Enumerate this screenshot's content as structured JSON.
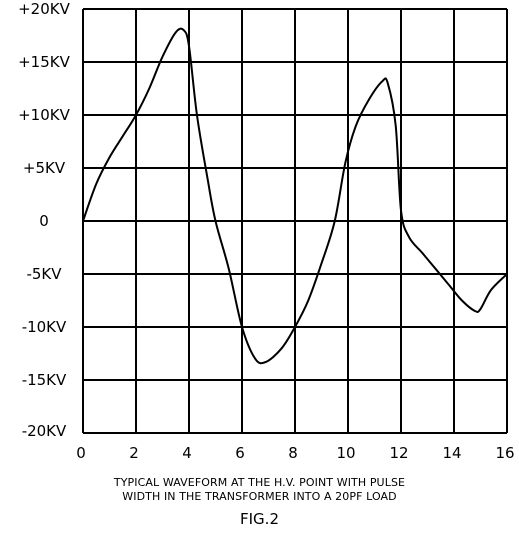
{
  "chart_data": {
    "type": "line",
    "xlim": [
      0,
      16
    ],
    "ylim": [
      -20,
      20
    ],
    "x_ticks": [
      0,
      2,
      4,
      6,
      8,
      10,
      12,
      14,
      16
    ],
    "x_tick_labels": [
      "0",
      "2",
      "4",
      "6",
      "8",
      "10",
      "12",
      "14",
      "16"
    ],
    "y_ticks": [
      20,
      15,
      10,
      5,
      0,
      -5,
      -10,
      -15,
      -20
    ],
    "y_tick_labels": [
      "+20KV",
      "+15KV",
      "+10KV",
      "+5KV",
      "0",
      "-5KV",
      "-10KV",
      "-15KV",
      "-20KV"
    ],
    "grid": true,
    "series": [
      {
        "color": "#000000",
        "x": [
          0,
          0.5,
          1.0,
          1.5,
          2.0,
          2.5,
          3.0,
          3.5,
          3.8,
          4.0,
          4.3,
          4.7,
          5.0,
          5.5,
          6.0,
          6.5,
          6.9,
          7.5,
          8.0,
          8.5,
          9.0,
          9.5,
          9.9,
          10.3,
          10.8,
          11.3,
          11.5,
          11.8,
          12.0,
          12.3,
          12.8,
          13.3,
          13.8,
          14.3,
          14.8,
          15.0,
          15.4,
          16.0
        ],
        "y": [
          0,
          3.5,
          6,
          8,
          10,
          12.5,
          15.5,
          17.8,
          18,
          16.5,
          10,
          4,
          0,
          -4.5,
          -10,
          -13,
          -13.3,
          -12,
          -10,
          -7.5,
          -4,
          0,
          5.5,
          9,
          11.5,
          13.2,
          13,
          9,
          1,
          -1.5,
          -3,
          -4.5,
          -6,
          -7.5,
          -8.5,
          -8.3,
          -6.5,
          -5
        ]
      }
    ]
  },
  "caption": {
    "line1": "TYPICAL WAVEFORM AT THE H.V. POINT WITH PULSE",
    "line2": "WIDTH IN THE TRANSFORMER INTO A 20PF LOAD",
    "figure": "FIG.2"
  }
}
